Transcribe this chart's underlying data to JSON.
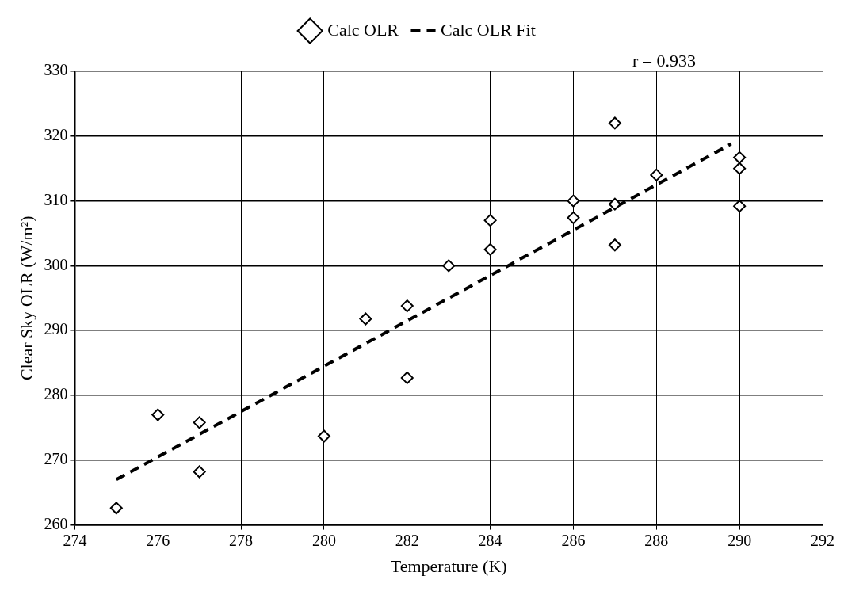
{
  "chart_data": {
    "type": "scatter",
    "xlabel": "Temperature (K)",
    "ylabel": "Clear Sky OLR (W/m²)",
    "annotations": [
      "r = 0.933"
    ],
    "xlim": [
      274,
      292
    ],
    "xticks": [
      274,
      276,
      278,
      280,
      282,
      284,
      286,
      288,
      290,
      292
    ],
    "ylim": [
      260,
      330
    ],
    "yticks": [
      260,
      270,
      280,
      290,
      300,
      310,
      320,
      330
    ],
    "grid": true,
    "legend": "top",
    "series": [
      {
        "name": "Calc OLR",
        "color": "#000000",
        "marker": "diamond",
        "x": [
          275,
          276,
          277,
          277,
          280,
          281,
          282,
          282,
          283,
          284,
          284,
          286,
          286,
          287,
          287,
          287,
          288,
          290,
          290,
          290
        ],
        "values": [
          262.6,
          277,
          275.8,
          268.2,
          273.7,
          291.8,
          293.8,
          282.7,
          300,
          307,
          302.5,
          310,
          307.4,
          322,
          309.5,
          303.2,
          314,
          316.7,
          315,
          309.2
        ]
      },
      {
        "name": "Calc OLR Fit",
        "type": "line",
        "color": "#000000",
        "marker": "none",
        "line_style": "dashed",
        "x": [
          275,
          289.8
        ],
        "values": [
          267,
          318.8
        ]
      }
    ]
  }
}
